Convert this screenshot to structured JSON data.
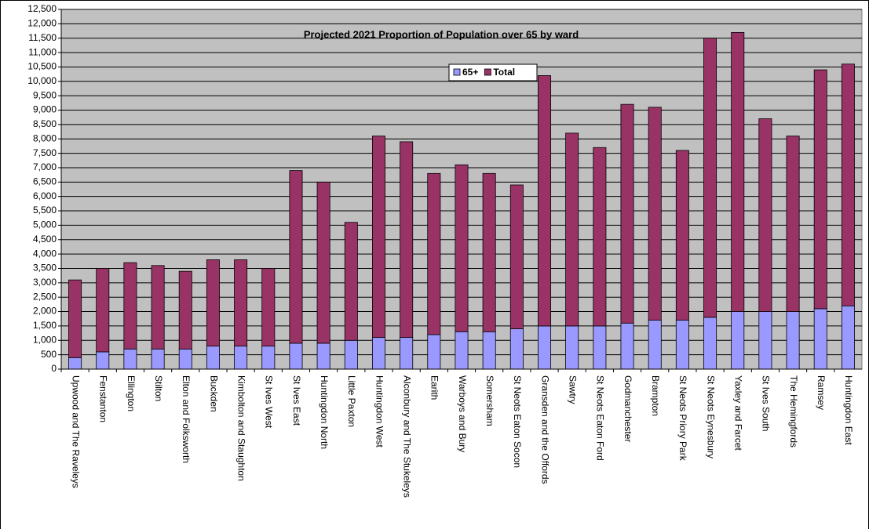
{
  "chart_data": {
    "type": "stacked_bar",
    "title": "Projected 2021 Proportion of Population over 65 by ward",
    "categories": [
      "Upwood and The Raveleys",
      "Fenstanton",
      "Ellington",
      "Stilton",
      "Elton and Folksworth",
      "Buckden",
      "Kimbolton and Staughton",
      "St Ives West",
      "St Ives East",
      "Huntingdon North",
      "Little Paxton",
      "Huntingdon West",
      "Alconbury and The Stukeleys",
      "Earith",
      "Warboys and Bury",
      "Somersham",
      "St Neots Eaton Socon",
      "Gransden and the Offords",
      "Sawtry",
      "St Neots Eaton Ford",
      "Godmanchester",
      "Brampton",
      "St Neots Priory Park",
      "St Neots Eynesbury",
      "Yaxley and Farcet",
      "St Ives South",
      "The Hemingfords",
      "Ramsey",
      "Huntingdon East"
    ],
    "series": [
      {
        "name": "65+",
        "color": "#9999ff",
        "values": [
          400,
          600,
          700,
          700,
          700,
          800,
          800,
          800,
          900,
          900,
          1000,
          1100,
          1100,
          1200,
          1300,
          1300,
          1400,
          1500,
          1500,
          1500,
          1600,
          1700,
          1700,
          1800,
          2000,
          2000,
          2000,
          2100,
          2200
        ]
      },
      {
        "name": "Total",
        "color": "#993366",
        "values": [
          2700,
          2900,
          3000,
          2900,
          2700,
          3000,
          3000,
          2700,
          6000,
          5600,
          4100,
          7000,
          6800,
          5600,
          5800,
          5500,
          5000,
          8700,
          6700,
          6200,
          7600,
          7400,
          5900,
          9700,
          9700,
          6700,
          6100,
          8300,
          8400
        ]
      }
    ],
    "ylim": [
      0,
      12500
    ],
    "yticks": [
      0,
      500,
      {
        "value": 1000,
        "label": "1,000"
      },
      {
        "value": 1500,
        "label": "1,500"
      },
      {
        "value": 2000,
        "label": "2,000"
      },
      {
        "value": 2500,
        "label": "2,500"
      },
      {
        "value": 3000,
        "label": "3,000"
      },
      {
        "value": 3500,
        "label": "3,500"
      },
      {
        "value": 4000,
        "label": "4,000"
      },
      {
        "value": 4500,
        "label": "4,500"
      },
      {
        "value": 5000,
        "label": "5,000"
      },
      {
        "value": 5500,
        "label": "5,500"
      },
      {
        "value": 6000,
        "label": "6,000"
      },
      {
        "value": 6500,
        "label": "6,500"
      },
      {
        "value": 7000,
        "label": "7,000"
      },
      {
        "value": 7500,
        "label": "7,500"
      },
      {
        "value": 8000,
        "label": "8,000"
      },
      {
        "value": 8500,
        "label": "8,500"
      },
      {
        "value": 9000,
        "label": "9,000"
      },
      {
        "value": 9500,
        "label": "9,500"
      },
      {
        "value": 10000,
        "label": "10,000"
      },
      {
        "value": 10500,
        "label": "10,500"
      },
      {
        "value": 11000,
        "label": "11,000"
      },
      {
        "value": 11500,
        "label": "11,500"
      },
      {
        "value": 12000,
        "label": "12,000"
      },
      {
        "value": 12500,
        "label": "12,500"
      }
    ],
    "grid": true
  }
}
